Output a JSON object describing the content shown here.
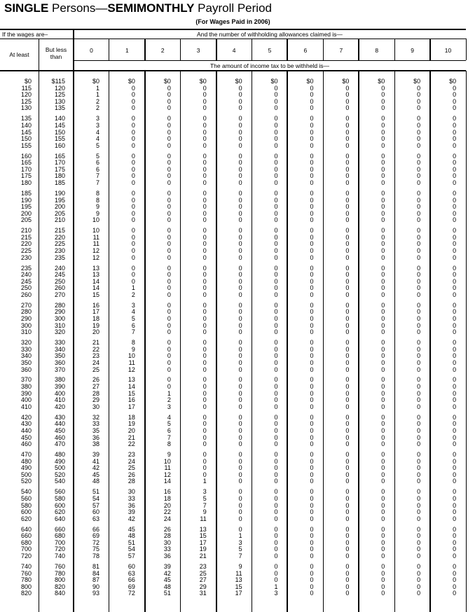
{
  "title": {
    "part1": "SINGLE",
    "part2": " Persons—",
    "part3": "SEMIMONTHLY",
    "part4": " Payroll Period"
  },
  "subtitle": "(For Wages Paid in 2006)",
  "header": {
    "wages_label": "If the wages are–",
    "allowances_label": "And the number of withholding allowances claimed is—",
    "at_least": "At least",
    "but_less_than": "But less than",
    "allowance_columns": [
      "0",
      "1",
      "2",
      "3",
      "4",
      "5",
      "6",
      "7",
      "8",
      "9",
      "10"
    ],
    "amount_label": "The amount of income tax to be withheld is—"
  },
  "rows": [
    [
      "$0",
      "$115",
      "$0",
      "$0",
      "$0",
      "$0",
      "$0",
      "$0",
      "$0",
      "$0",
      "$0",
      "$0",
      "$0"
    ],
    [
      "115",
      "120",
      1,
      0,
      0,
      0,
      0,
      0,
      0,
      0,
      0,
      0,
      0
    ],
    [
      "120",
      "125",
      1,
      0,
      0,
      0,
      0,
      0,
      0,
      0,
      0,
      0,
      0
    ],
    [
      "125",
      "130",
      2,
      0,
      0,
      0,
      0,
      0,
      0,
      0,
      0,
      0,
      0
    ],
    [
      "130",
      "135",
      2,
      0,
      0,
      0,
      0,
      0,
      0,
      0,
      0,
      0,
      0
    ],
    [
      "135",
      "140",
      3,
      0,
      0,
      0,
      0,
      0,
      0,
      0,
      0,
      0,
      0
    ],
    [
      "140",
      "145",
      3,
      0,
      0,
      0,
      0,
      0,
      0,
      0,
      0,
      0,
      0
    ],
    [
      "145",
      "150",
      4,
      0,
      0,
      0,
      0,
      0,
      0,
      0,
      0,
      0,
      0
    ],
    [
      "150",
      "155",
      4,
      0,
      0,
      0,
      0,
      0,
      0,
      0,
      0,
      0,
      0
    ],
    [
      "155",
      "160",
      5,
      0,
      0,
      0,
      0,
      0,
      0,
      0,
      0,
      0,
      0
    ],
    [
      "160",
      "165",
      5,
      0,
      0,
      0,
      0,
      0,
      0,
      0,
      0,
      0,
      0
    ],
    [
      "165",
      "170",
      6,
      0,
      0,
      0,
      0,
      0,
      0,
      0,
      0,
      0,
      0
    ],
    [
      "170",
      "175",
      6,
      0,
      0,
      0,
      0,
      0,
      0,
      0,
      0,
      0,
      0
    ],
    [
      "175",
      "180",
      7,
      0,
      0,
      0,
      0,
      0,
      0,
      0,
      0,
      0,
      0
    ],
    [
      "180",
      "185",
      7,
      0,
      0,
      0,
      0,
      0,
      0,
      0,
      0,
      0,
      0
    ],
    [
      "185",
      "190",
      8,
      0,
      0,
      0,
      0,
      0,
      0,
      0,
      0,
      0,
      0
    ],
    [
      "190",
      "195",
      8,
      0,
      0,
      0,
      0,
      0,
      0,
      0,
      0,
      0,
      0
    ],
    [
      "195",
      "200",
      9,
      0,
      0,
      0,
      0,
      0,
      0,
      0,
      0,
      0,
      0
    ],
    [
      "200",
      "205",
      9,
      0,
      0,
      0,
      0,
      0,
      0,
      0,
      0,
      0,
      0
    ],
    [
      "205",
      "210",
      10,
      0,
      0,
      0,
      0,
      0,
      0,
      0,
      0,
      0,
      0
    ],
    [
      "210",
      "215",
      10,
      0,
      0,
      0,
      0,
      0,
      0,
      0,
      0,
      0,
      0
    ],
    [
      "215",
      "220",
      11,
      0,
      0,
      0,
      0,
      0,
      0,
      0,
      0,
      0,
      0
    ],
    [
      "220",
      "225",
      11,
      0,
      0,
      0,
      0,
      0,
      0,
      0,
      0,
      0,
      0
    ],
    [
      "225",
      "230",
      12,
      0,
      0,
      0,
      0,
      0,
      0,
      0,
      0,
      0,
      0
    ],
    [
      "230",
      "235",
      12,
      0,
      0,
      0,
      0,
      0,
      0,
      0,
      0,
      0,
      0
    ],
    [
      "235",
      "240",
      13,
      0,
      0,
      0,
      0,
      0,
      0,
      0,
      0,
      0,
      0
    ],
    [
      "240",
      "245",
      13,
      0,
      0,
      0,
      0,
      0,
      0,
      0,
      0,
      0,
      0
    ],
    [
      "245",
      "250",
      14,
      0,
      0,
      0,
      0,
      0,
      0,
      0,
      0,
      0,
      0
    ],
    [
      "250",
      "260",
      14,
      1,
      0,
      0,
      0,
      0,
      0,
      0,
      0,
      0,
      0
    ],
    [
      "260",
      "270",
      15,
      2,
      0,
      0,
      0,
      0,
      0,
      0,
      0,
      0,
      0
    ],
    [
      "270",
      "280",
      16,
      3,
      0,
      0,
      0,
      0,
      0,
      0,
      0,
      0,
      0
    ],
    [
      "280",
      "290",
      17,
      4,
      0,
      0,
      0,
      0,
      0,
      0,
      0,
      0,
      0
    ],
    [
      "290",
      "300",
      18,
      5,
      0,
      0,
      0,
      0,
      0,
      0,
      0,
      0,
      0
    ],
    [
      "300",
      "310",
      19,
      6,
      0,
      0,
      0,
      0,
      0,
      0,
      0,
      0,
      0
    ],
    [
      "310",
      "320",
      20,
      7,
      0,
      0,
      0,
      0,
      0,
      0,
      0,
      0,
      0
    ],
    [
      "320",
      "330",
      21,
      8,
      0,
      0,
      0,
      0,
      0,
      0,
      0,
      0,
      0
    ],
    [
      "330",
      "340",
      22,
      9,
      0,
      0,
      0,
      0,
      0,
      0,
      0,
      0,
      0
    ],
    [
      "340",
      "350",
      23,
      10,
      0,
      0,
      0,
      0,
      0,
      0,
      0,
      0,
      0
    ],
    [
      "350",
      "360",
      24,
      11,
      0,
      0,
      0,
      0,
      0,
      0,
      0,
      0,
      0
    ],
    [
      "360",
      "370",
      25,
      12,
      0,
      0,
      0,
      0,
      0,
      0,
      0,
      0,
      0
    ],
    [
      "370",
      "380",
      26,
      13,
      0,
      0,
      0,
      0,
      0,
      0,
      0,
      0,
      0
    ],
    [
      "380",
      "390",
      27,
      14,
      0,
      0,
      0,
      0,
      0,
      0,
      0,
      0,
      0
    ],
    [
      "390",
      "400",
      28,
      15,
      1,
      0,
      0,
      0,
      0,
      0,
      0,
      0,
      0
    ],
    [
      "400",
      "410",
      29,
      16,
      2,
      0,
      0,
      0,
      0,
      0,
      0,
      0,
      0
    ],
    [
      "410",
      "420",
      30,
      17,
      3,
      0,
      0,
      0,
      0,
      0,
      0,
      0,
      0
    ],
    [
      "420",
      "430",
      32,
      18,
      4,
      0,
      0,
      0,
      0,
      0,
      0,
      0,
      0
    ],
    [
      "430",
      "440",
      33,
      19,
      5,
      0,
      0,
      0,
      0,
      0,
      0,
      0,
      0
    ],
    [
      "440",
      "450",
      35,
      20,
      6,
      0,
      0,
      0,
      0,
      0,
      0,
      0,
      0
    ],
    [
      "450",
      "460",
      36,
      21,
      7,
      0,
      0,
      0,
      0,
      0,
      0,
      0,
      0
    ],
    [
      "460",
      "470",
      38,
      22,
      8,
      0,
      0,
      0,
      0,
      0,
      0,
      0,
      0
    ],
    [
      "470",
      "480",
      39,
      23,
      9,
      0,
      0,
      0,
      0,
      0,
      0,
      0,
      0
    ],
    [
      "480",
      "490",
      41,
      24,
      10,
      0,
      0,
      0,
      0,
      0,
      0,
      0,
      0
    ],
    [
      "490",
      "500",
      42,
      25,
      11,
      0,
      0,
      0,
      0,
      0,
      0,
      0,
      0
    ],
    [
      "500",
      "520",
      45,
      26,
      12,
      0,
      0,
      0,
      0,
      0,
      0,
      0,
      0
    ],
    [
      "520",
      "540",
      48,
      28,
      14,
      1,
      0,
      0,
      0,
      0,
      0,
      0,
      0
    ],
    [
      "540",
      "560",
      51,
      30,
      16,
      3,
      0,
      0,
      0,
      0,
      0,
      0,
      0
    ],
    [
      "560",
      "580",
      54,
      33,
      18,
      5,
      0,
      0,
      0,
      0,
      0,
      0,
      0
    ],
    [
      "580",
      "600",
      57,
      36,
      20,
      7,
      0,
      0,
      0,
      0,
      0,
      0,
      0
    ],
    [
      "600",
      "620",
      60,
      39,
      22,
      9,
      0,
      0,
      0,
      0,
      0,
      0,
      0
    ],
    [
      "620",
      "640",
      63,
      42,
      24,
      11,
      0,
      0,
      0,
      0,
      0,
      0,
      0
    ],
    [
      "640",
      "660",
      66,
      45,
      26,
      13,
      0,
      0,
      0,
      0,
      0,
      0,
      0
    ],
    [
      "660",
      "680",
      69,
      48,
      28,
      15,
      1,
      0,
      0,
      0,
      0,
      0,
      0
    ],
    [
      "680",
      "700",
      72,
      51,
      30,
      17,
      3,
      0,
      0,
      0,
      0,
      0,
      0
    ],
    [
      "700",
      "720",
      75,
      54,
      33,
      19,
      5,
      0,
      0,
      0,
      0,
      0,
      0
    ],
    [
      "720",
      "740",
      78,
      57,
      36,
      21,
      7,
      0,
      0,
      0,
      0,
      0,
      0
    ],
    [
      "740",
      "760",
      81,
      60,
      39,
      23,
      9,
      0,
      0,
      0,
      0,
      0,
      0
    ],
    [
      "760",
      "780",
      84,
      63,
      42,
      25,
      11,
      0,
      0,
      0,
      0,
      0,
      0
    ],
    [
      "780",
      "800",
      87,
      66,
      45,
      27,
      13,
      0,
      0,
      0,
      0,
      0,
      0
    ],
    [
      "800",
      "820",
      90,
      69,
      48,
      29,
      15,
      1,
      0,
      0,
      0,
      0,
      0
    ],
    [
      "820",
      "840",
      93,
      72,
      51,
      31,
      17,
      3,
      0,
      0,
      0,
      0,
      0
    ]
  ]
}
